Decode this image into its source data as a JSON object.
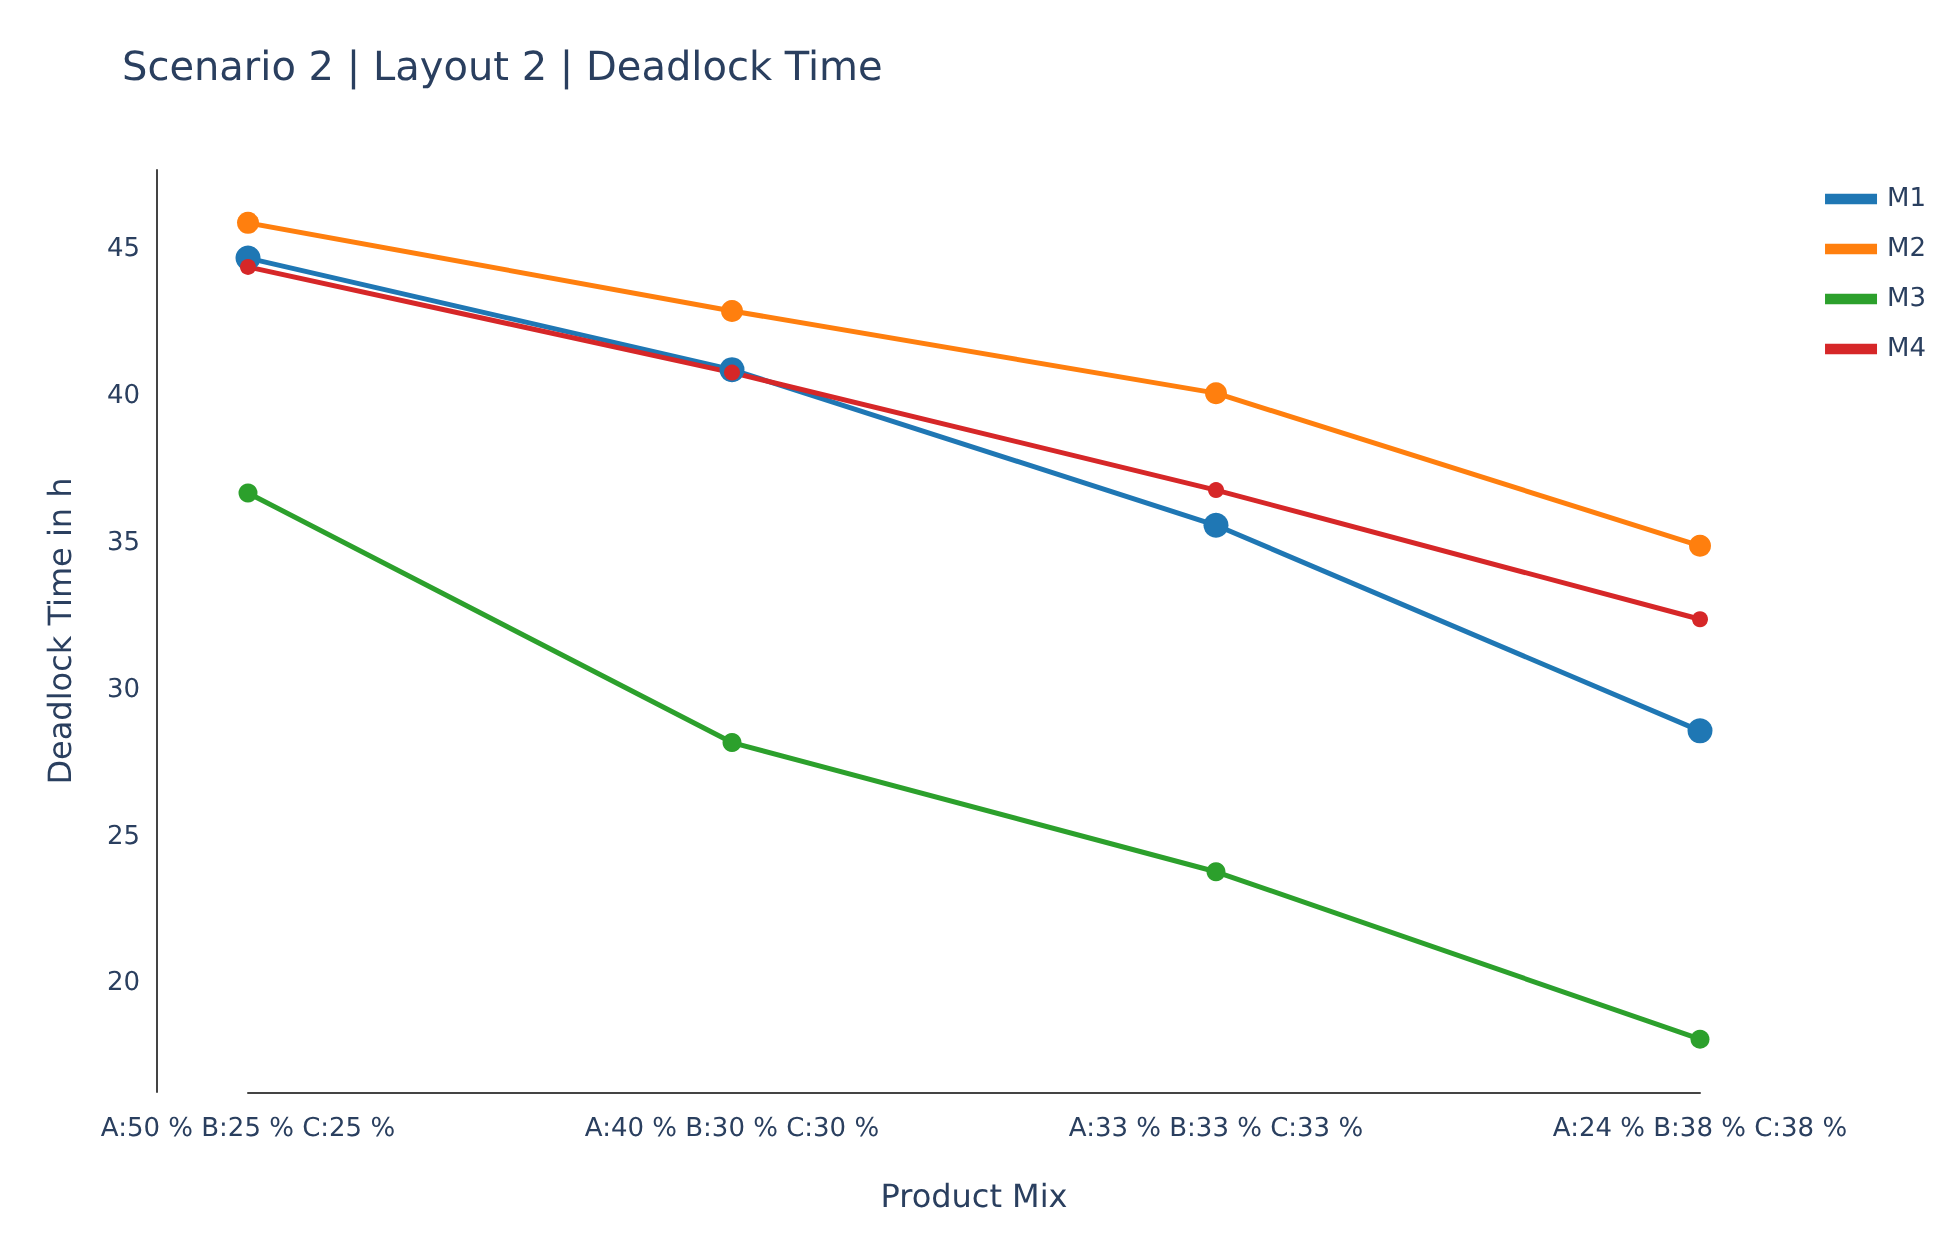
{
  "chart_data": {
    "type": "line",
    "title": "Scenario 2 | Layout 2 | Deadlock Time",
    "xlabel": "Product Mix",
    "ylabel": "Deadlock Time in h",
    "categories": [
      "A:50 % B:25 % C:25 %",
      "A:40 % B:30 % C:30 %",
      "A:33 % B:33 % C:33 %",
      "A:24 % B:38 % C:38 %"
    ],
    "series": [
      {
        "name": "M1",
        "color": "#1f77b4",
        "values": [
          44.7,
          40.9,
          35.6,
          28.6
        ]
      },
      {
        "name": "M2",
        "color": "#ff7f0e",
        "values": [
          45.9,
          42.9,
          40.1,
          34.9
        ]
      },
      {
        "name": "M3",
        "color": "#2ca02c",
        "values": [
          36.7,
          28.2,
          23.8,
          18.1
        ]
      },
      {
        "name": "M4",
        "color": "#d62728",
        "values": [
          44.4,
          40.8,
          36.8,
          32.4
        ]
      }
    ],
    "ylim": [
      16.3,
      47.7
    ],
    "yticks": [
      20,
      25,
      30,
      35,
      40,
      45
    ],
    "grid": false,
    "legend": "top right",
    "marker": "circle",
    "line_style": "solid"
  }
}
